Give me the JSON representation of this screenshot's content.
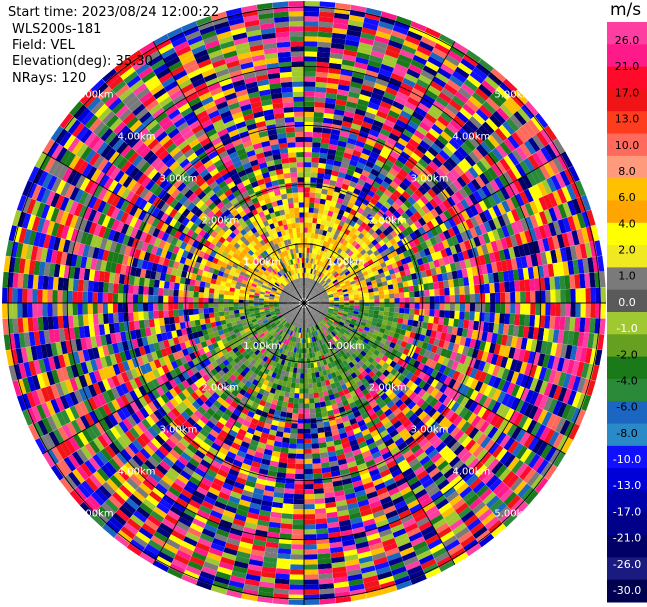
{
  "header": {
    "start_time": "Start time: 2023/08/24 12:00:22",
    "instrument": "WLS200s-181",
    "field": "Field: VEL",
    "elevation": "Elevation(deg): 35.30",
    "nrays": "NRays: 120"
  },
  "chart_data": {
    "type": "heatmap",
    "projection": "polar-ppi",
    "units": "m/s",
    "n_rays": 120,
    "range_ring_labels": [
      "1.00km",
      "2.00km",
      "3.00km",
      "4.00km",
      "5.00km"
    ],
    "colorbar": {
      "unit_label": "m/s",
      "tick_labels": [
        "26.0",
        "21.0",
        "17.0",
        "13.0",
        "10.0",
        "8.0",
        "6.0",
        "4.0",
        "2.0",
        "1.0",
        "0.0",
        "-1.0",
        "-2.0",
        "-4.0",
        "-6.0",
        "-8.0",
        "-10.0",
        "-13.0",
        "-17.0",
        "-21.0",
        "-26.0",
        "-30.0"
      ],
      "colors": [
        "#ff3ea2",
        "#ff1a8a",
        "#ff0a2a",
        "#f01416",
        "#ff3c1e",
        "#ff6a5c",
        "#ff9a7c",
        "#ffc000",
        "#ffa400",
        "#ffff00",
        "#f0e820",
        "#7a7a7a",
        "#5a5a5a",
        "#a0c830",
        "#66a020",
        "#1a7a1a",
        "#2a8a3a",
        "#1a66c0",
        "#2a8ac8",
        "#1010ff",
        "#0000d8",
        "#0000aa",
        "#000088",
        "#000066",
        "#1a1a80",
        "#000050"
      ]
    },
    "inner_pattern": {
      "positive_sector_colors": [
        "#ffff00",
        "#f0e820",
        "#ffc000",
        "#ffa400"
      ],
      "negative_sector_colors": [
        "#66a020",
        "#7ab030",
        "#1a7a1a",
        "#2a8a3a"
      ],
      "near_zero_color": "#7a7a7a",
      "noise_colors": [
        "#ff3ea2",
        "#ff0a2a",
        "#ff6a5c",
        "#ffc000",
        "#ffff00",
        "#7a7a7a",
        "#a0c830",
        "#1a7a1a",
        "#2a8a3a",
        "#1a66c0",
        "#0000d8",
        "#000088",
        "#000066",
        "#ff1a8a",
        "#f01416",
        "#1010ff"
      ]
    }
  }
}
